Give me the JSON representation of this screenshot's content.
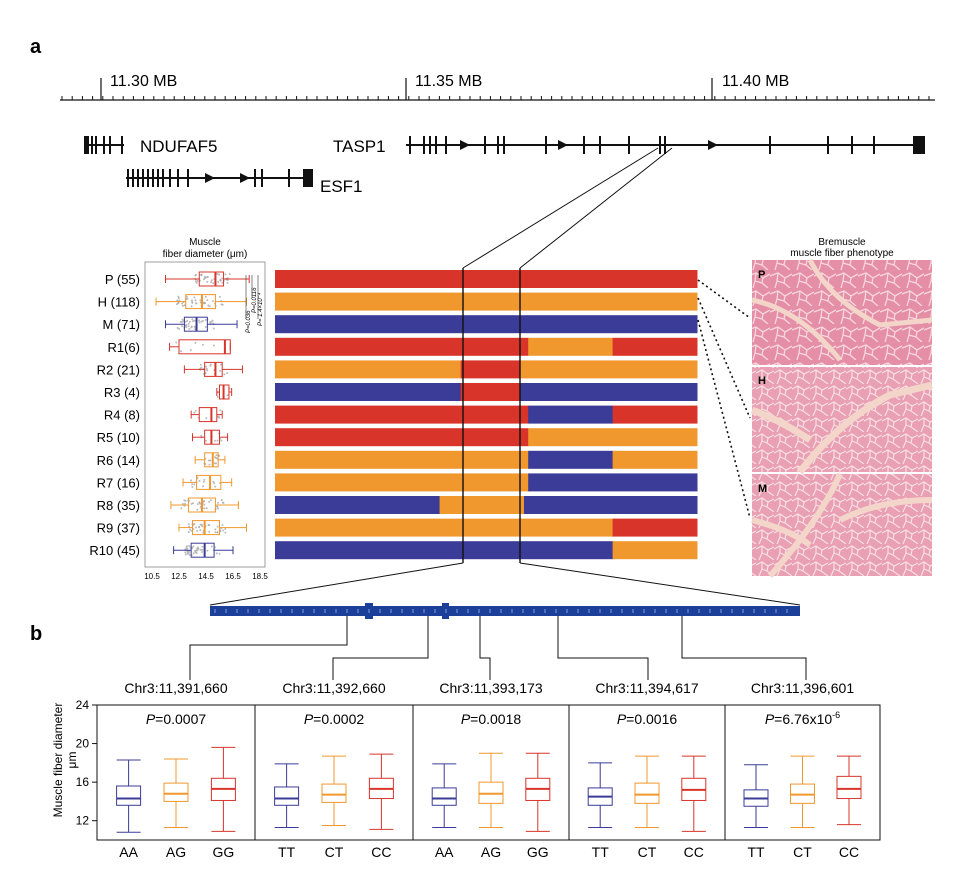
{
  "panel_a_label": "a",
  "panel_b_label": "b",
  "genome_axis": {
    "ticks": [
      {
        "label": "11.30 MB"
      },
      {
        "label": "11.35 MB"
      },
      {
        "label": "11.40 MB"
      }
    ]
  },
  "genes": [
    {
      "name": "NDUFAF5"
    },
    {
      "name": "ESF1"
    },
    {
      "name": "TASP1"
    }
  ],
  "boxplot_a": {
    "title": [
      "Muscle",
      "fiber diameter (μm)"
    ],
    "xticks": [
      "10.5",
      "12.5",
      "14.5",
      "16.5",
      "18.5"
    ],
    "pvalue_labels": [
      "P=0.036",
      "P=0.0116",
      "P= 1.4×10⁻⁴"
    ]
  },
  "phenotype": {
    "title": [
      "Bremuscle",
      "muscle fiber phenotype"
    ],
    "photo_labels": [
      "P",
      "H",
      "M"
    ]
  },
  "colors": {
    "red": "#d8342a",
    "orange": "#f0982e",
    "purple": "#3b3b98",
    "navy": "#1c3f9a"
  },
  "chart_data": [
    {
      "type": "box",
      "title": "Muscle fiber diameter (μm)",
      "xlim": [
        10.5,
        18.5
      ],
      "groups": [
        {
          "name": "P (55)",
          "n": 55,
          "color": "red",
          "min": 11.5,
          "q1": 14.0,
          "median": 15.2,
          "q3": 15.8,
          "max": 17.7
        },
        {
          "name": "H (118)",
          "n": 118,
          "color": "orange",
          "min": 10.8,
          "q1": 13.0,
          "median": 14.2,
          "q3": 15.2,
          "max": 17.5
        },
        {
          "name": "M (71)",
          "n": 71,
          "color": "purple",
          "min": 11.5,
          "q1": 12.9,
          "median": 13.8,
          "q3": 14.6,
          "max": 16.8
        },
        {
          "name": "R1(6)",
          "n": 6,
          "color": "red",
          "min": 11.8,
          "q1": 12.5,
          "median": 15.9,
          "q3": 16.3,
          "max": 16.3
        },
        {
          "name": "R2 (21)",
          "n": 21,
          "color": "red",
          "min": 12.9,
          "q1": 14.4,
          "median": 15.2,
          "q3": 15.7,
          "max": 17.2
        },
        {
          "name": "R3 (4)",
          "n": 4,
          "color": "red",
          "min": 15.3,
          "q1": 15.5,
          "median": 15.8,
          "q3": 16.2,
          "max": 16.4
        },
        {
          "name": "R4 (8)",
          "n": 8,
          "color": "red",
          "min": 13.4,
          "q1": 14.0,
          "median": 14.9,
          "q3": 15.3,
          "max": 15.7
        },
        {
          "name": "R5 (10)",
          "n": 10,
          "color": "red",
          "min": 13.5,
          "q1": 14.4,
          "median": 14.9,
          "q3": 15.5,
          "max": 16.1
        },
        {
          "name": "R6 (14)",
          "n": 14,
          "color": "orange",
          "min": 13.7,
          "q1": 14.4,
          "median": 15.0,
          "q3": 15.4,
          "max": 15.9
        },
        {
          "name": "R7 (16)",
          "n": 16,
          "color": "orange",
          "min": 12.8,
          "q1": 13.8,
          "median": 14.8,
          "q3": 15.6,
          "max": 16.4
        },
        {
          "name": "R8 (35)",
          "n": 35,
          "color": "orange",
          "min": 11.9,
          "q1": 13.2,
          "median": 14.2,
          "q3": 15.2,
          "max": 16.9
        },
        {
          "name": "R9 (37)",
          "n": 37,
          "color": "orange",
          "min": 12.5,
          "q1": 13.5,
          "median": 14.4,
          "q3": 15.5,
          "max": 17.5
        },
        {
          "name": "R10 (45)",
          "n": 45,
          "color": "purple",
          "min": 12.1,
          "q1": 13.4,
          "median": 14.4,
          "q3": 15.1,
          "max": 16.5
        }
      ]
    },
    {
      "type": "haplotype-bars",
      "rows": [
        {
          "name": "P",
          "segments": [
            [
              "red",
              1.0
            ]
          ]
        },
        {
          "name": "H",
          "segments": [
            [
              "orange",
              1.0
            ]
          ]
        },
        {
          "name": "M",
          "segments": [
            [
              "purple",
              1.0
            ]
          ]
        },
        {
          "name": "R1",
          "segments": [
            [
              "red",
              0.6
            ],
            [
              "orange",
              0.2
            ],
            [
              "red",
              0.2
            ]
          ]
        },
        {
          "name": "R2",
          "segments": [
            [
              "orange",
              0.44
            ],
            [
              "red",
              0.14
            ],
            [
              "orange",
              0.42
            ]
          ]
        },
        {
          "name": "R3",
          "segments": [
            [
              "purple",
              0.44
            ],
            [
              "red",
              0.14
            ],
            [
              "purple",
              0.42
            ]
          ]
        },
        {
          "name": "R4",
          "segments": [
            [
              "red",
              0.6
            ],
            [
              "purple",
              0.2
            ],
            [
              "red",
              0.2
            ]
          ]
        },
        {
          "name": "R5",
          "segments": [
            [
              "red",
              0.6
            ],
            [
              "orange",
              0.4
            ]
          ]
        },
        {
          "name": "R6",
          "segments": [
            [
              "orange",
              0.6
            ],
            [
              "purple",
              0.2
            ],
            [
              "orange",
              0.2
            ]
          ]
        },
        {
          "name": "R7",
          "segments": [
            [
              "orange",
              0.6
            ],
            [
              "purple",
              0.4
            ]
          ]
        },
        {
          "name": "R8",
          "segments": [
            [
              "purple",
              0.39
            ],
            [
              "orange",
              0.2
            ],
            [
              "purple",
              0.41
            ]
          ]
        },
        {
          "name": "R9",
          "segments": [
            [
              "orange",
              0.8
            ],
            [
              "red",
              0.2
            ]
          ]
        },
        {
          "name": "R10",
          "segments": [
            [
              "purple",
              0.8
            ],
            [
              "orange",
              0.2
            ]
          ]
        }
      ]
    },
    {
      "type": "box",
      "ylabel": "Muscle fiber diameter\nμm",
      "ylim": [
        10,
        24
      ],
      "yticks": [
        "12",
        "16",
        "20",
        "24"
      ],
      "panels": [
        {
          "snp": "Chr3:11,391,660",
          "p": "P=0.0007",
          "boxes": [
            {
              "genotype": "AA",
              "color": "purple",
              "min": 10.8,
              "q1": 13.6,
              "median": 14.3,
              "q3": 15.6,
              "max": 18.3
            },
            {
              "genotype": "AG",
              "color": "orange",
              "min": 11.3,
              "q1": 14.0,
              "median": 14.8,
              "q3": 15.9,
              "max": 18.4
            },
            {
              "genotype": "GG",
              "color": "red",
              "min": 10.9,
              "q1": 14.1,
              "median": 15.3,
              "q3": 16.4,
              "max": 19.6
            }
          ]
        },
        {
          "snp": "Chr3:11,392,660",
          "p": "P=0.0002",
          "boxes": [
            {
              "genotype": "TT",
              "color": "purple",
              "min": 11.3,
              "q1": 13.6,
              "median": 14.3,
              "q3": 15.5,
              "max": 17.9
            },
            {
              "genotype": "CT",
              "color": "orange",
              "min": 11.5,
              "q1": 13.9,
              "median": 14.7,
              "q3": 15.8,
              "max": 18.7
            },
            {
              "genotype": "CC",
              "color": "red",
              "min": 11.1,
              "q1": 14.3,
              "median": 15.3,
              "q3": 16.4,
              "max": 18.9
            }
          ]
        },
        {
          "snp": "Chr3:11,393,173",
          "p": "P=0.0018",
          "boxes": [
            {
              "genotype": "AA",
              "color": "purple",
              "min": 11.3,
              "q1": 13.6,
              "median": 14.3,
              "q3": 15.4,
              "max": 17.9
            },
            {
              "genotype": "AG",
              "color": "orange",
              "min": 11.3,
              "q1": 13.8,
              "median": 14.8,
              "q3": 16.0,
              "max": 19.0
            },
            {
              "genotype": "GG",
              "color": "red",
              "min": 10.9,
              "q1": 14.1,
              "median": 15.3,
              "q3": 16.4,
              "max": 19.0
            }
          ]
        },
        {
          "snp": "Chr3:11,394,617",
          "p": "P=0.0016",
          "boxes": [
            {
              "genotype": "TT",
              "color": "purple",
              "min": 11.3,
              "q1": 13.6,
              "median": 14.5,
              "q3": 15.4,
              "max": 18.0
            },
            {
              "genotype": "CT",
              "color": "orange",
              "min": 11.3,
              "q1": 13.8,
              "median": 14.7,
              "q3": 15.9,
              "max": 18.7
            },
            {
              "genotype": "CC",
              "color": "red",
              "min": 10.9,
              "q1": 14.1,
              "median": 15.2,
              "q3": 16.4,
              "max": 18.7
            }
          ]
        },
        {
          "snp": "Chr3:11,396,601",
          "p": "P=6.76x10",
          "p_exp": "-6",
          "boxes": [
            {
              "genotype": "TT",
              "color": "purple",
              "min": 11.3,
              "q1": 13.5,
              "median": 14.3,
              "q3": 15.2,
              "max": 17.8
            },
            {
              "genotype": "CT",
              "color": "orange",
              "min": 11.3,
              "q1": 13.8,
              "median": 14.7,
              "q3": 15.8,
              "max": 18.7
            },
            {
              "genotype": "CC",
              "color": "red",
              "min": 11.6,
              "q1": 14.3,
              "median": 15.3,
              "q3": 16.6,
              "max": 18.7
            }
          ]
        }
      ]
    }
  ]
}
